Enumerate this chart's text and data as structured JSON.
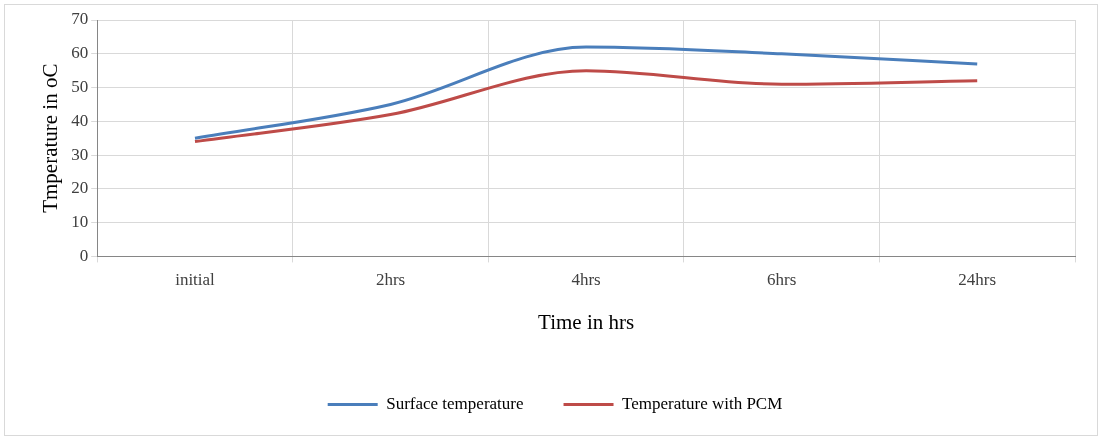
{
  "chart_data": {
    "type": "line",
    "xlabel": "Time in hrs",
    "ylabel": "Tmperature in oC",
    "categories": [
      "initial",
      "2hrs",
      "4hrs",
      "6hrs",
      "24hrs"
    ],
    "series": [
      {
        "name": "Surface temperature",
        "color": "#4a7ebb",
        "values": [
          35,
          45,
          62,
          60,
          57
        ]
      },
      {
        "name": "Temperature with PCM",
        "color": "#be4b48",
        "values": [
          34,
          42,
          55,
          51,
          52
        ]
      }
    ],
    "ylim": [
      0,
      70
    ],
    "yticks": [
      0,
      10,
      20,
      30,
      40,
      50,
      60,
      70
    ],
    "grid": true,
    "legend": "bottom",
    "marker": "none",
    "line_style": "solid"
  }
}
